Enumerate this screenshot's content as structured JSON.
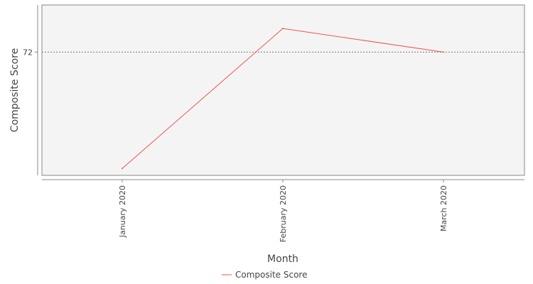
{
  "chart_data": {
    "type": "line",
    "title": "",
    "xlabel": "Month",
    "ylabel": "Composite Score",
    "categories": [
      "January 2020",
      "February 2020",
      "March 2020"
    ],
    "series": [
      {
        "name": "Composite Score",
        "values": [
          46.8,
          77.1,
          72.0
        ],
        "color": "#f0504f"
      }
    ],
    "y_ticks": [
      72
    ],
    "ylim": [
      45.3,
      82.2
    ],
    "grid": "horizontal-dotted",
    "legend_position": "bottom-center",
    "colors": {
      "plot_background": "#f4f4f4",
      "grid": "#777777",
      "axis": "#888888",
      "text": "#444444"
    }
  }
}
